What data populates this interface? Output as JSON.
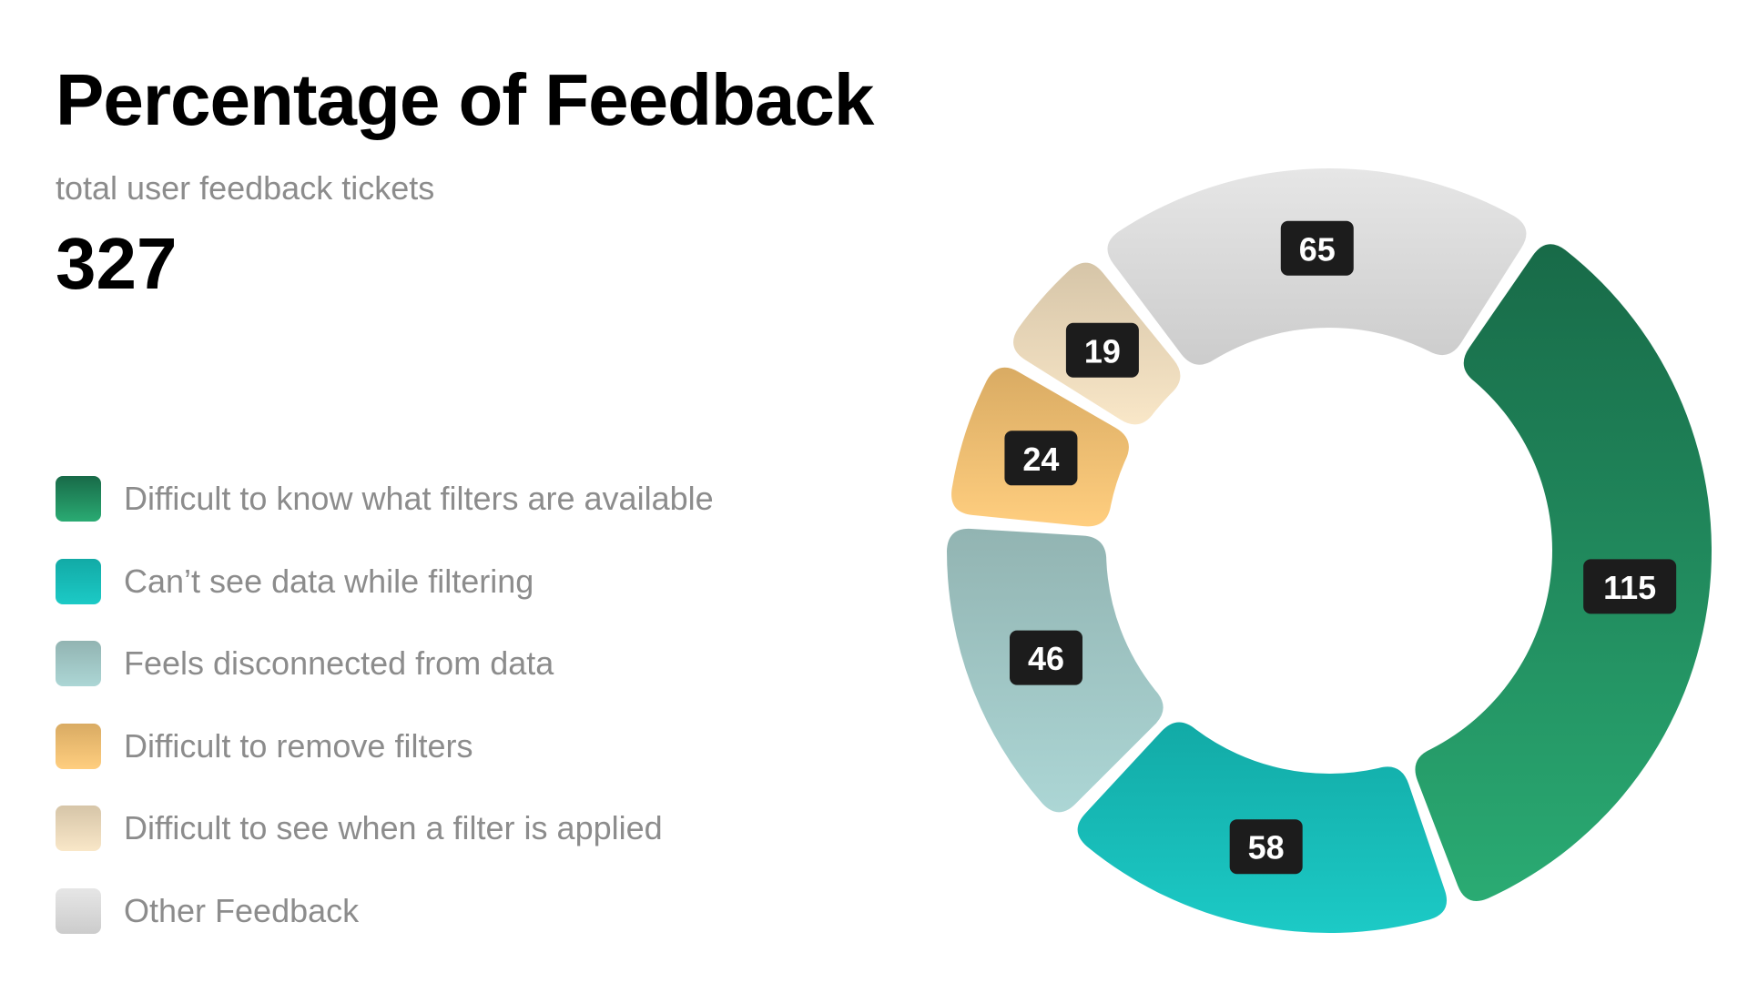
{
  "header": {
    "title": "Percentage of Feedback",
    "subtitle": "total user feedback tickets",
    "total": "327"
  },
  "chart_data": {
    "type": "pie",
    "title": "Percentage of Feedback",
    "subtitle": "total user feedback tickets",
    "total": 327,
    "donut": true,
    "legend_position": "left",
    "series": [
      {
        "name": "Difficult to know what filters are available",
        "value": 115,
        "color_top": "#186a48",
        "color_bottom": "#2aab73"
      },
      {
        "name": "Can’t see data while filtering",
        "value": 58,
        "color_top": "#12aaa6",
        "color_bottom": "#1ccac6"
      },
      {
        "name": "Feels disconnected from data",
        "value": 46,
        "color_top": "#92b4b2",
        "color_bottom": "#acd6d5"
      },
      {
        "name": "Difficult to remove filters",
        "value": 24,
        "color_top": "#d9ab63",
        "color_bottom": "#ffce7f"
      },
      {
        "name": "Difficult to see when a filter is applied",
        "value": 19,
        "color_top": "#d6c5a8",
        "color_bottom": "#f9e7c8"
      },
      {
        "name": "Other Feedback",
        "value": 65,
        "color_top": "#e6e6e6",
        "color_bottom": "#cccccc"
      }
    ]
  }
}
